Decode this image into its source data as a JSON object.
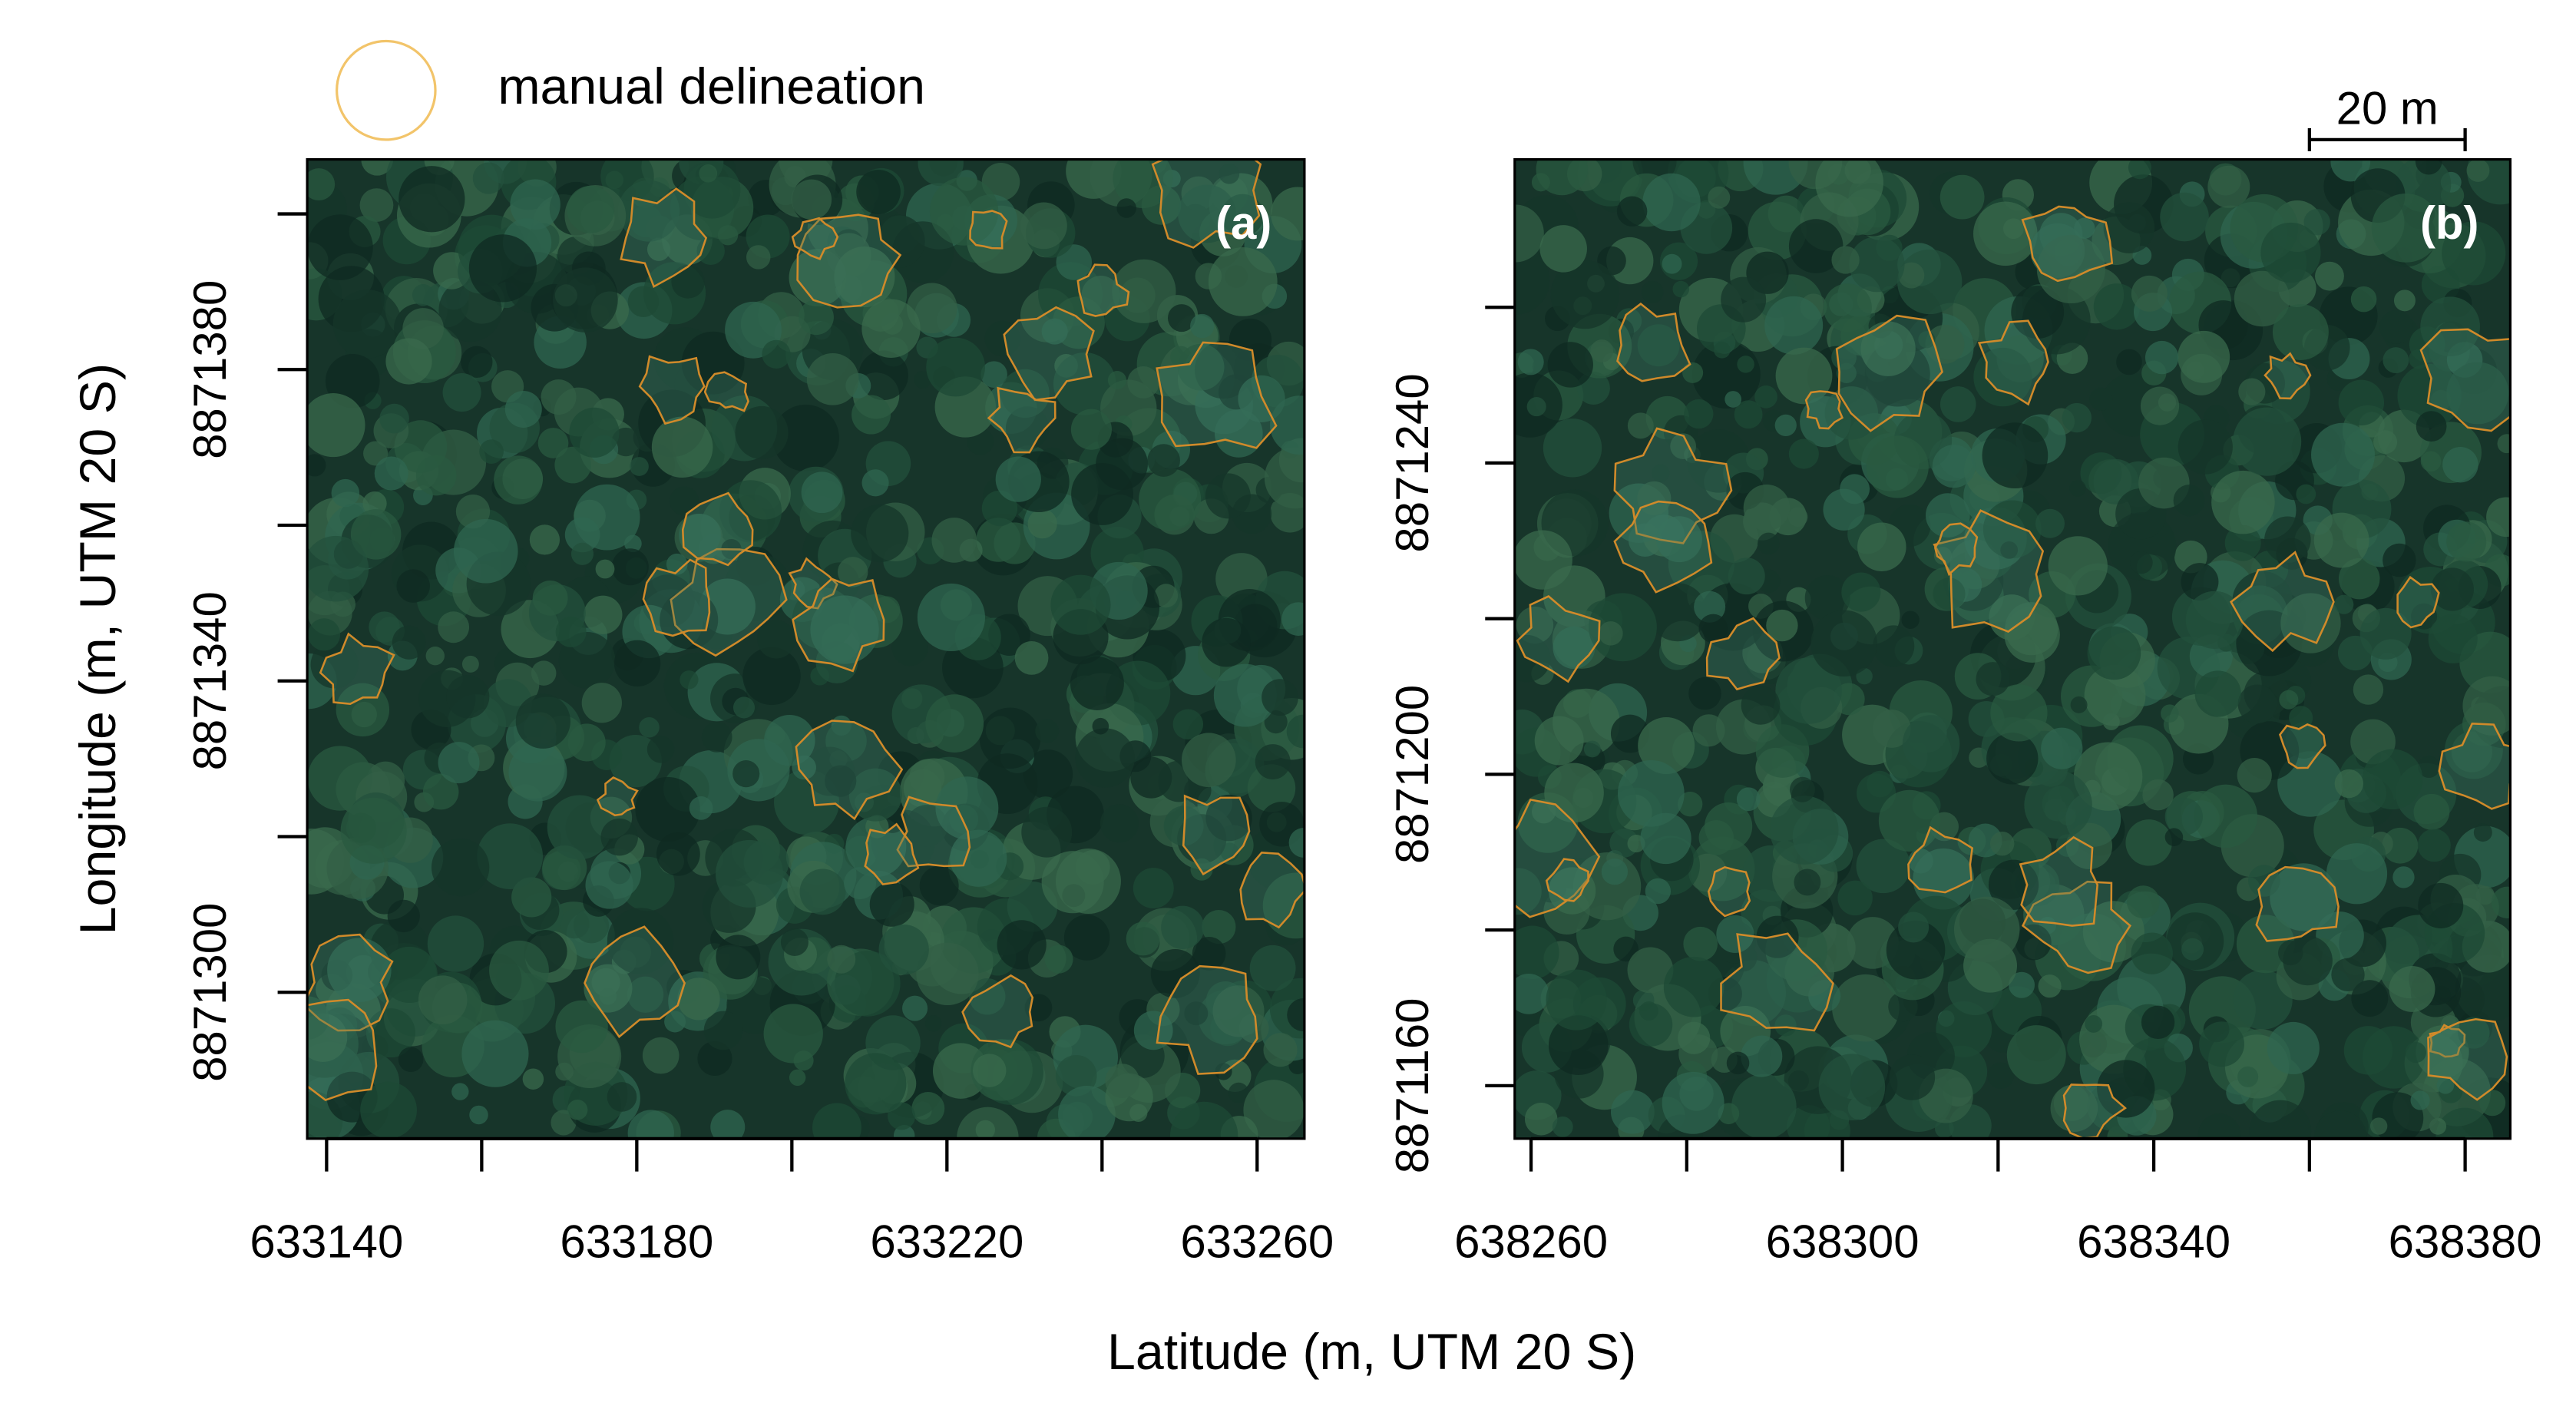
{
  "figure": {
    "legend": "manual delineation",
    "xlabel": "Latitude (m, UTM 20 S)",
    "ylabel": "Longitude (m, UTM 20 S)",
    "scalebar": {
      "length": 20,
      "label": "20 m"
    }
  },
  "chart_data": [
    {
      "type": "image",
      "label": "(a)",
      "xlim": [
        633137.5,
        633266.1
      ],
      "ylim": [
        8871281.2,
        8871407
      ],
      "xticks": [
        633140,
        633180,
        633220,
        633260
      ],
      "xticks_minor": [
        633160,
        633200,
        633240
      ],
      "yticks": [
        8871300,
        8871340,
        8871380
      ],
      "yticks_minor": [
        8871320,
        8871360,
        8871400
      ]
    },
    {
      "type": "image",
      "label": "(b)",
      "xlim": [
        638257.9,
        638385.8
      ],
      "ylim": [
        8871153.2,
        8871279
      ],
      "xticks": [
        638260,
        638300,
        638340,
        638380
      ],
      "xticks_minor": [
        638280,
        638320,
        638360
      ],
      "yticks": [
        8871160,
        8871200,
        8871240
      ],
      "yticks_minor": [
        8871180,
        8871220,
        8871260
      ]
    }
  ]
}
